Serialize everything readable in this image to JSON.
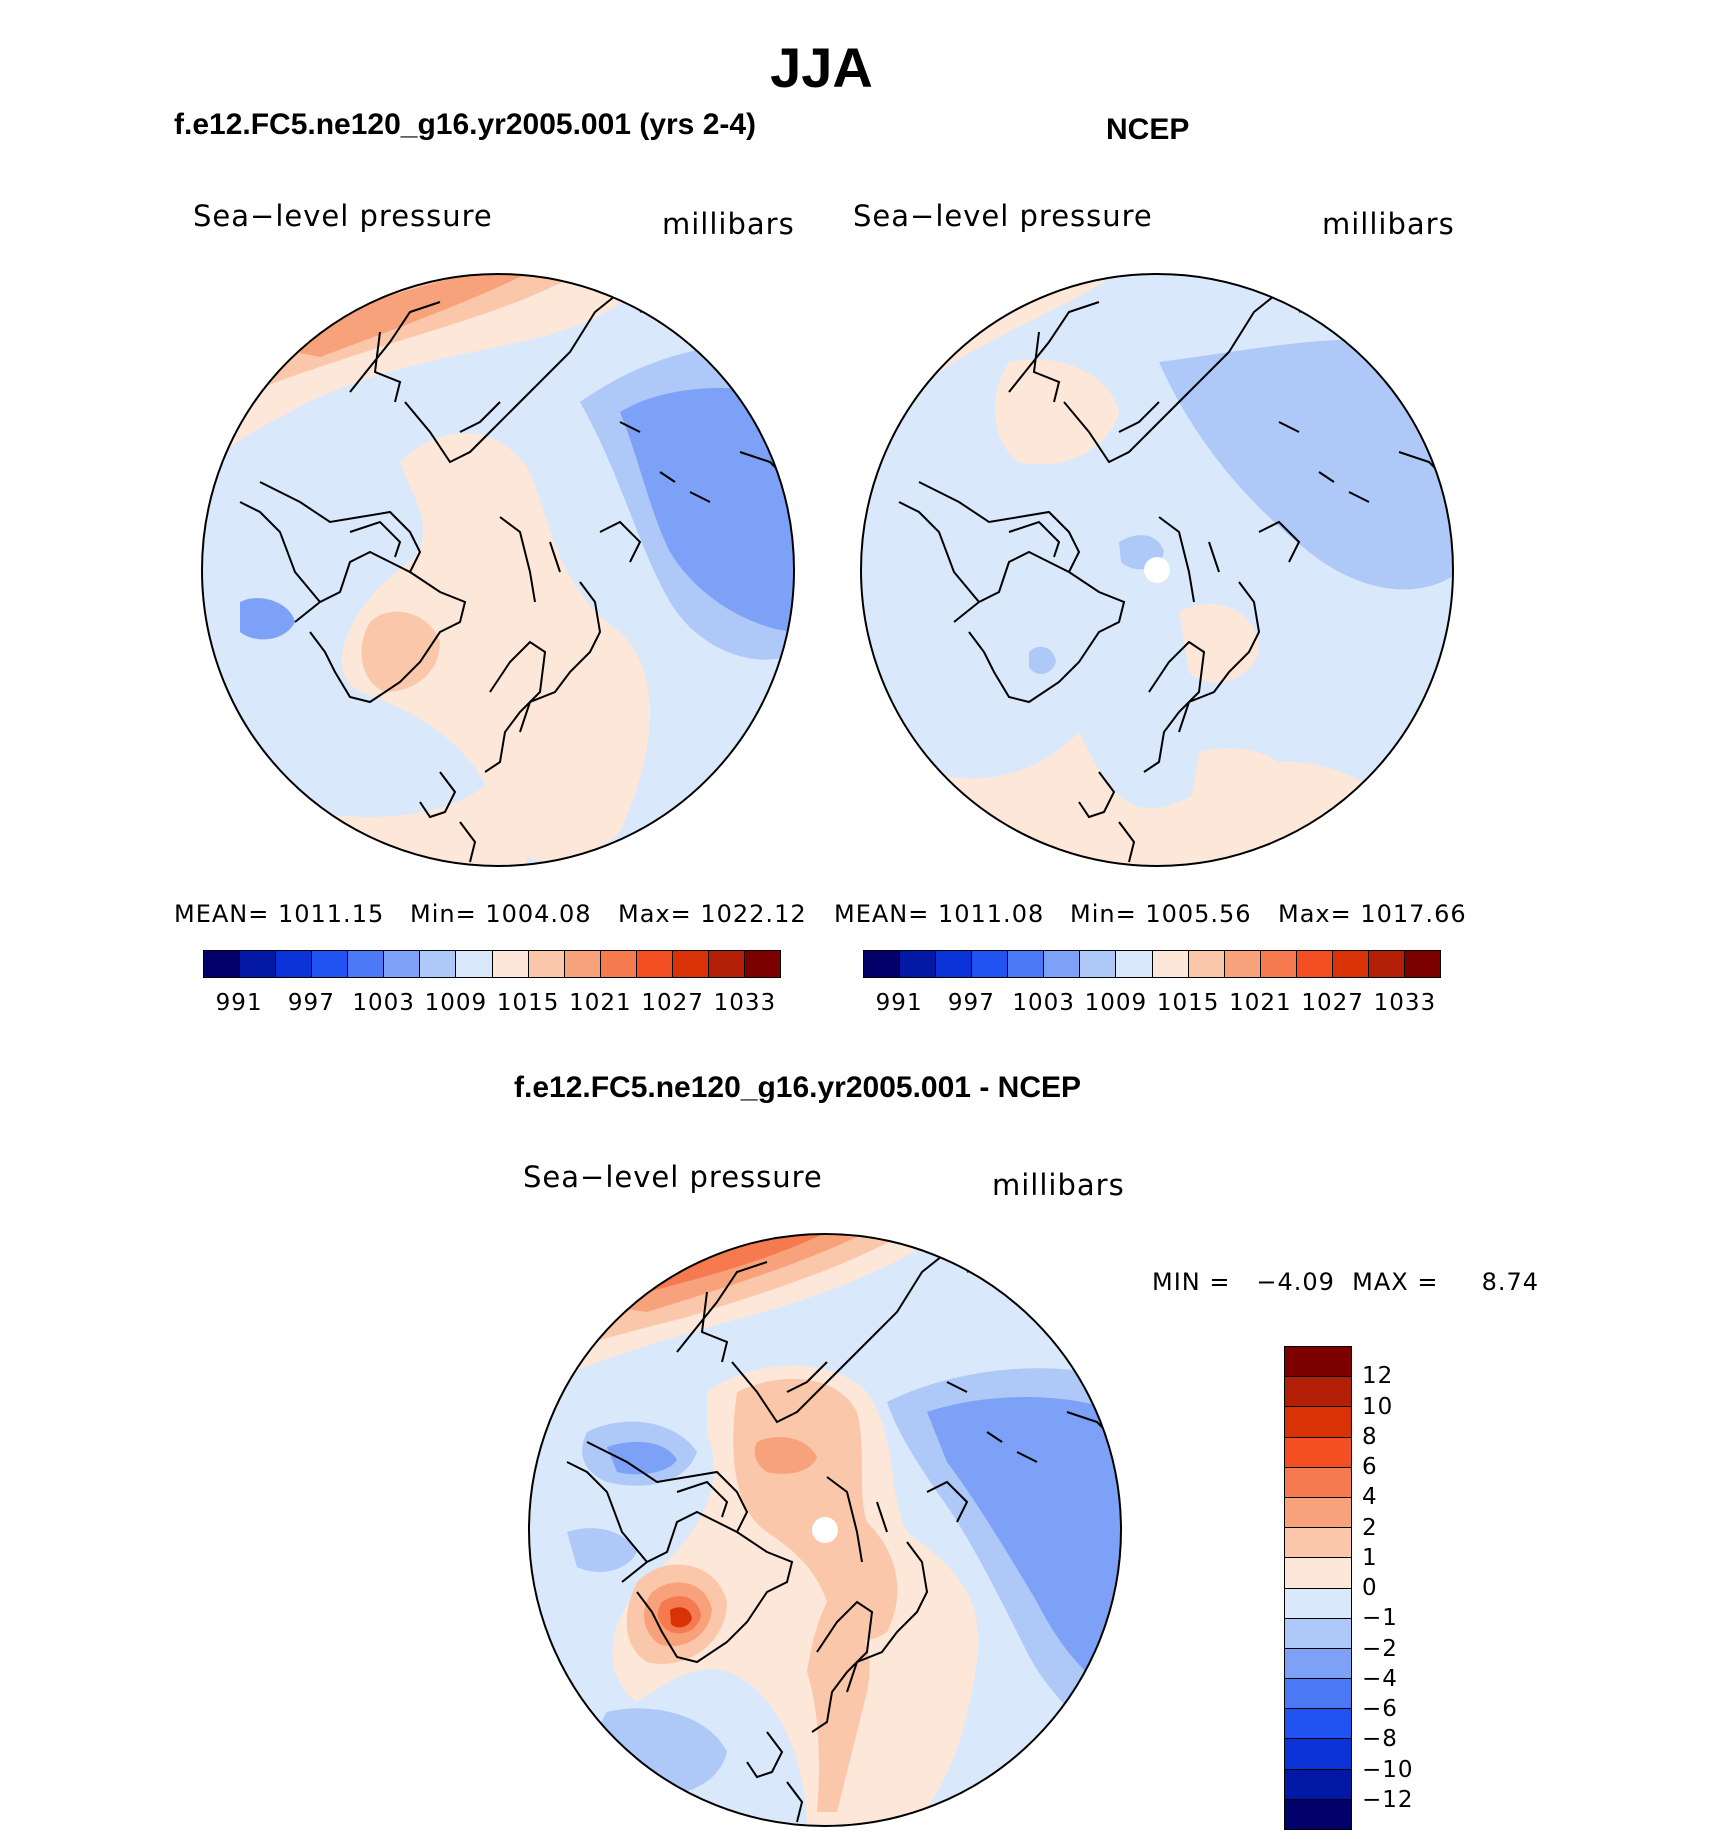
{
  "page": {
    "title": "JJA"
  },
  "panels": {
    "model": {
      "title": "f.e12.FC5.ne120_g16.yr2005.001 (yrs 2-4)",
      "left_label": "Sea−level pressure",
      "right_label": "millibars",
      "stats": {
        "mean": "MEAN= 1011.15",
        "min": "Min= 1004.08",
        "max": "Max= 1022.12"
      }
    },
    "obs": {
      "title": "NCEP",
      "left_label": "Sea−level pressure",
      "right_label": "millibars",
      "stats": {
        "mean": "MEAN= 1011.08",
        "min": "Min= 1005.56",
        "max": "Max= 1017.66"
      }
    },
    "diff": {
      "title": "f.e12.FC5.ne120_g16.yr2005.001 - NCEP",
      "left_label": "Sea−level pressure",
      "right_label": "millibars",
      "minmax": "MIN =   −4.09  MAX =     8.74"
    }
  },
  "colorbar_abs": {
    "colors": [
      "#03006a",
      "#0319a6",
      "#0b33d8",
      "#2152f2",
      "#4b78f4",
      "#7da1f6",
      "#aec8f8",
      "#d9e8fb",
      "#fde7d9",
      "#fbc7aa",
      "#f8a27c",
      "#f67a50",
      "#f34f22",
      "#d93207",
      "#b21f06",
      "#7c0000"
    ],
    "labels": [
      "991",
      "997",
      "1003",
      "1009",
      "1015",
      "1021",
      "1027",
      "1033"
    ]
  },
  "colorbar_diff": {
    "colors": [
      "#7c0000",
      "#b21f06",
      "#d93207",
      "#f34f22",
      "#f67a50",
      "#f8a27c",
      "#fbc7aa",
      "#fde7d9",
      "#d9e8fb",
      "#aec8f8",
      "#7da1f6",
      "#4b78f4",
      "#2152f2",
      "#0b33d8",
      "#0319a6",
      "#03006a"
    ],
    "labels": [
      "12",
      "10",
      "8",
      "6",
      "4",
      "2",
      "1",
      "0",
      "−1",
      "−2",
      "−4",
      "−6",
      "−8",
      "−10",
      "−12"
    ]
  }
}
